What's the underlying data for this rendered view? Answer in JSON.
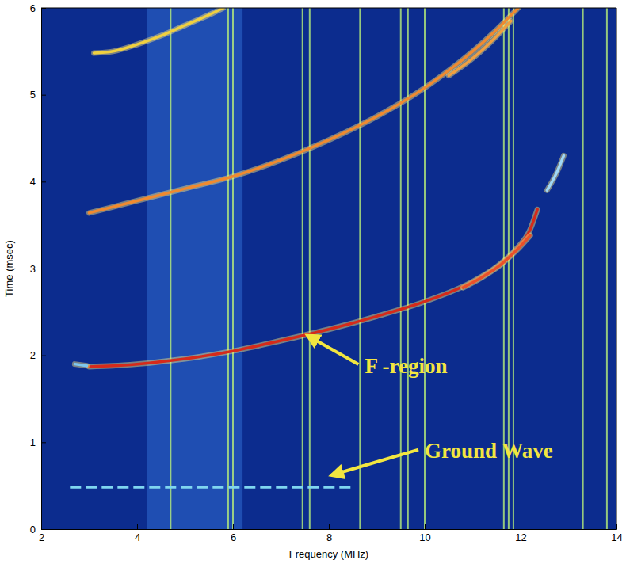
{
  "chart_data": {
    "type": "line",
    "x_label": "Frequency (MHz)",
    "y_label": "Time (msec)",
    "xlim": [
      2,
      14
    ],
    "ylim": [
      0,
      6
    ],
    "xticks": [
      2,
      4,
      6,
      8,
      10,
      12,
      14
    ],
    "yticks": [
      0,
      1,
      2,
      3,
      4,
      5,
      6
    ],
    "noise_band": [
      4.2,
      6.2
    ],
    "interference_lines": [
      4.7,
      5.9,
      6.0,
      7.45,
      7.6,
      8.65,
      9.5,
      9.65,
      10.0,
      11.65,
      11.75,
      11.85,
      13.3,
      13.8
    ],
    "series": [
      {
        "color": "#d62a1a",
        "x": [
          3.0,
          3.5,
          4.0,
          5.0,
          6.0,
          7.0,
          8.0,
          9.0,
          10.0,
          11.0,
          11.5,
          11.9,
          12.2,
          12.35
        ],
        "values": [
          1.87,
          1.88,
          1.9,
          1.96,
          2.05,
          2.17,
          2.3,
          2.45,
          2.62,
          2.85,
          3.02,
          3.22,
          3.45,
          3.68
        ]
      },
      {
        "color": "#e8502a",
        "x": [
          10.8,
          11.2,
          11.6,
          11.9,
          12.2
        ],
        "values": [
          2.78,
          2.9,
          3.05,
          3.2,
          3.38
        ]
      },
      {
        "color": "#f08a30",
        "x": [
          3.0,
          4.0,
          5.0,
          6.0,
          7.0,
          8.0,
          9.0,
          10.0,
          10.5,
          11.0,
          11.5,
          11.95
        ],
        "values": [
          3.64,
          3.78,
          3.92,
          4.06,
          4.25,
          4.48,
          4.75,
          5.08,
          5.28,
          5.5,
          5.75,
          6.0
        ]
      },
      {
        "color": "#f0a040",
        "x": [
          10.5,
          11.0,
          11.4,
          11.8
        ],
        "values": [
          5.22,
          5.42,
          5.62,
          5.85
        ]
      },
      {
        "color": "#f0d040",
        "x": [
          3.1,
          3.5,
          4.0,
          4.5,
          5.0,
          5.5,
          5.8
        ],
        "values": [
          5.48,
          5.5,
          5.58,
          5.68,
          5.8,
          5.92,
          6.0
        ]
      },
      {
        "color": "#7fc8f0",
        "x": [
          2.7,
          2.95
        ],
        "values": [
          1.9,
          1.88
        ]
      },
      {
        "color": "#9fd8f8",
        "x": [
          12.55,
          12.75,
          12.9
        ],
        "values": [
          3.9,
          4.1,
          4.3
        ]
      },
      {
        "color": "#7fd6f0",
        "line_style": "dashed",
        "x": [
          2.6,
          8.5
        ],
        "values": [
          0.48,
          0.48
        ]
      }
    ],
    "annotations": [
      {
        "text": "F -region",
        "x": 8.75,
        "y": 1.8,
        "arrow_x": 7.55,
        "arrow_y": 2.23
      },
      {
        "text": "Ground Wave",
        "x": 10.0,
        "y": 0.82,
        "arrow_x": 8.05,
        "arrow_y": 0.62
      }
    ]
  }
}
